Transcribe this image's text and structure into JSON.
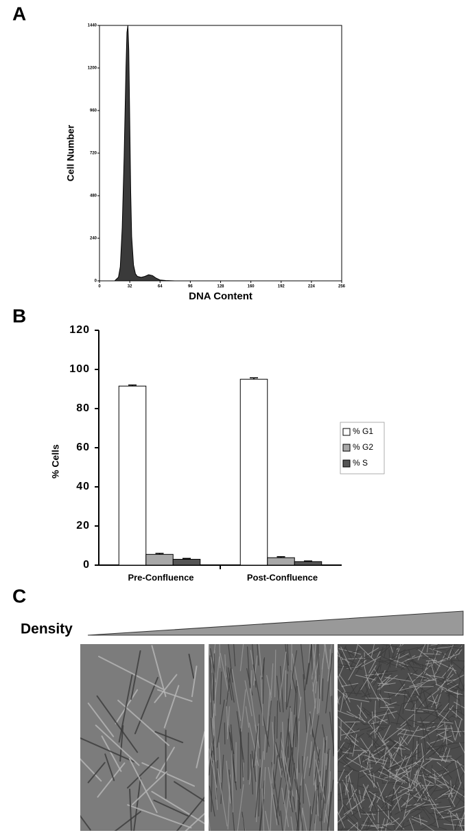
{
  "panel_labels": [
    "A",
    "B",
    "C"
  ],
  "density_label": "Density",
  "chart_data": [
    {
      "type": "area",
      "x_label": "DNA Content",
      "y_label": "Cell Number",
      "x": [
        16,
        20,
        22,
        24,
        26,
        28,
        29,
        30,
        31,
        32,
        33,
        34,
        36,
        38,
        40,
        44,
        48,
        52,
        56,
        60,
        64,
        70,
        80,
        100,
        256
      ],
      "y": [
        0,
        20,
        80,
        300,
        700,
        1200,
        1400,
        1440,
        1300,
        900,
        500,
        250,
        90,
        40,
        25,
        20,
        25,
        35,
        30,
        15,
        5,
        2,
        0,
        0,
        0
      ],
      "color": "#3a3a3a",
      "xlim": [
        0,
        256
      ],
      "xticks": [
        0,
        32,
        64,
        96,
        128,
        160,
        192,
        224,
        256
      ],
      "ylim": [
        0,
        1440
      ],
      "yticks": [
        0,
        240,
        480,
        720,
        960,
        1200,
        1440
      ]
    },
    {
      "type": "bar",
      "y_label": "% Cells",
      "categories": [
        "Pre-Confluence",
        "Post-Confluence"
      ],
      "series": [
        {
          "name": "% G1",
          "color": "#ffffff",
          "values": [
            91.5,
            95
          ],
          "errors": [
            0.5,
            0.7
          ]
        },
        {
          "name": "% G2",
          "color": "#a8a8a8",
          "values": [
            5.5,
            3.8
          ],
          "errors": [
            0.5,
            0.5
          ]
        },
        {
          "name": "% S",
          "color": "#555555",
          "values": [
            3,
            1.8
          ],
          "errors": [
            0.4,
            0.3
          ]
        }
      ],
      "ylim": [
        0,
        120
      ],
      "yticks": [
        0,
        20,
        40,
        60,
        80,
        100,
        120
      ]
    }
  ]
}
